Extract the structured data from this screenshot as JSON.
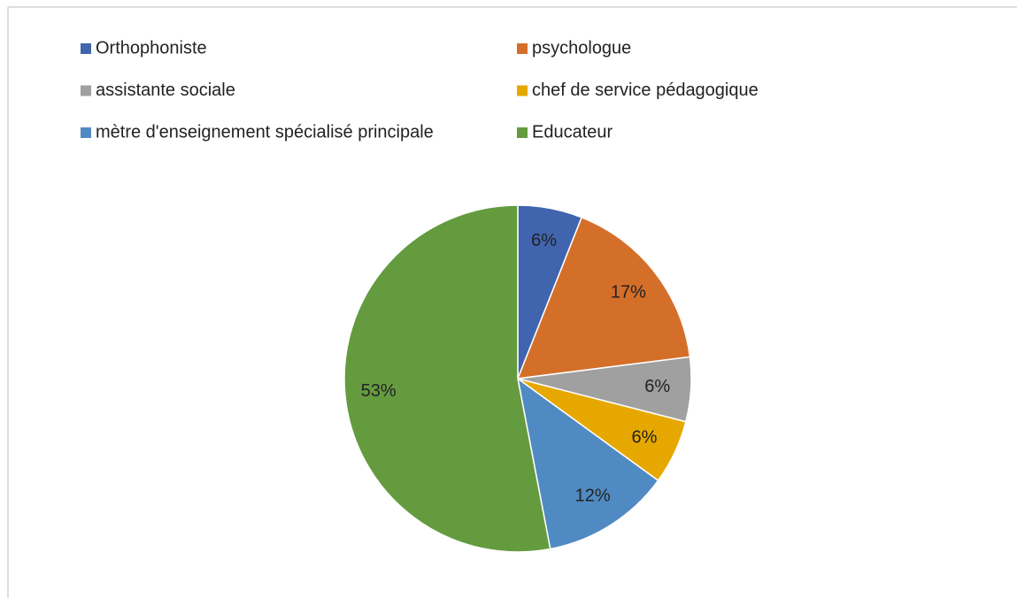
{
  "chart_data": {
    "type": "pie",
    "categories": [
      "Orthophoniste",
      "psychologue",
      "assistante sociale",
      "chef de service pédagogique",
      "mètre d'enseignement spécialisé principale",
      "Educateur"
    ],
    "values": [
      6,
      17,
      6,
      6,
      12,
      53
    ],
    "value_labels": [
      "6%",
      "17%",
      "6%",
      "6%",
      "12%",
      "53%"
    ],
    "colors": [
      "#4064ad",
      "#d46f2a",
      "#a0a0a0",
      "#e6a800",
      "#508ac2",
      "#649b3f"
    ],
    "legend": "top"
  }
}
